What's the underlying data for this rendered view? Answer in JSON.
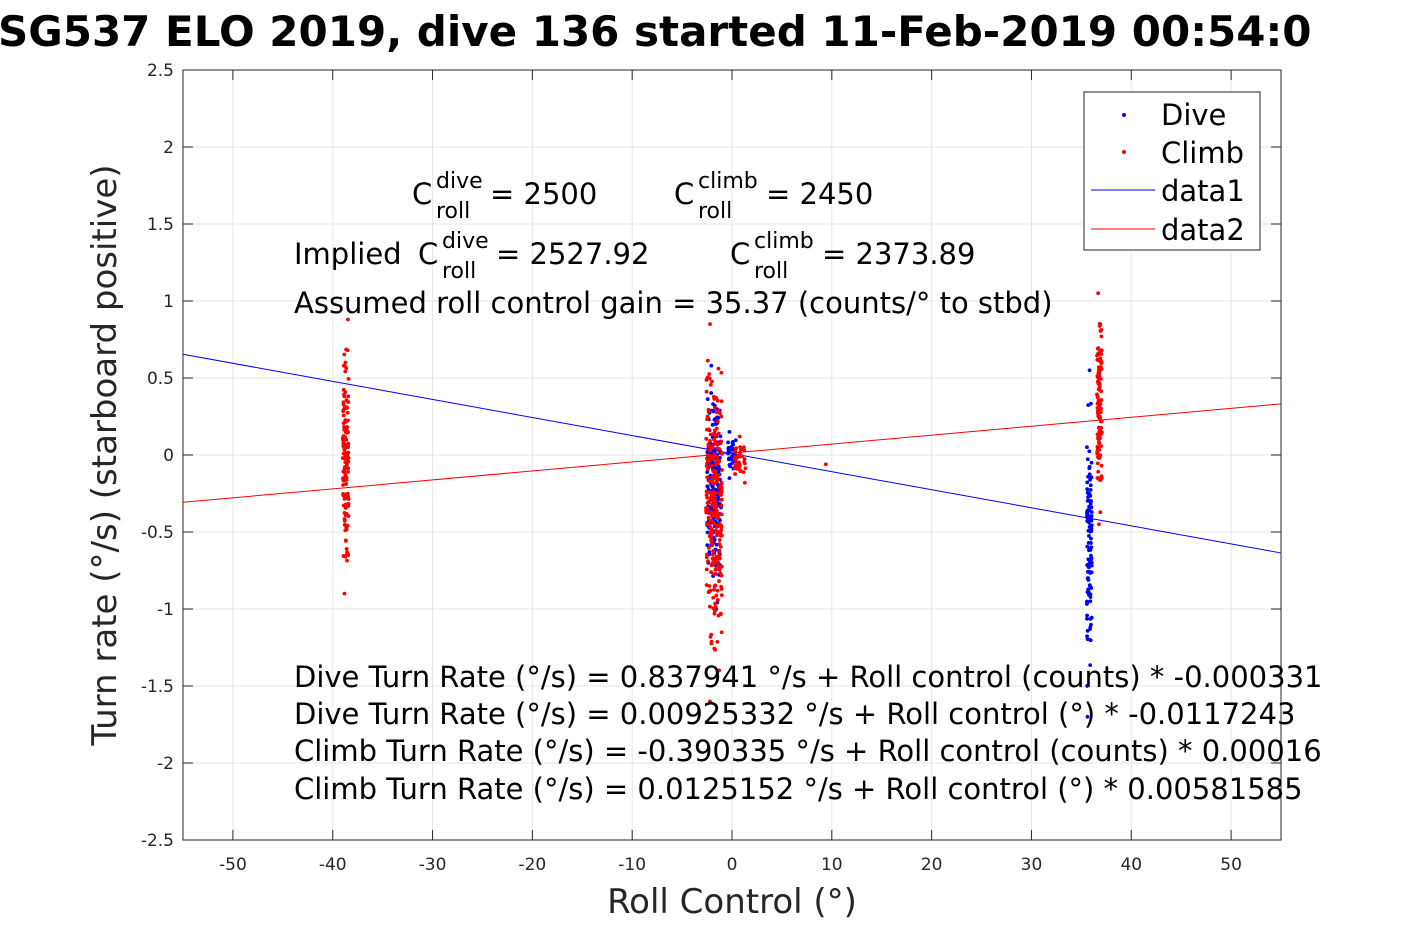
{
  "chart_data": {
    "type": "scatter",
    "title": "SG537 ELO 2019, dive 136 started 11-Feb-2019 00:54:0",
    "xlabel": "Roll Control (°)",
    "ylabel": "Turn rate (°/s) (starboard positive)",
    "xlim": [
      -55,
      55
    ],
    "ylim": [
      -2.5,
      2.5
    ],
    "xticks": [
      -50,
      -40,
      -30,
      -20,
      -10,
      0,
      10,
      20,
      30,
      40,
      50
    ],
    "yticks": [
      -2.5,
      -2,
      -1.5,
      -1,
      -0.5,
      0,
      0.5,
      1,
      1.5,
      2,
      2.5
    ],
    "xtick_labels": [
      "-50",
      "-40",
      "-30",
      "-20",
      "-10",
      "0",
      "10",
      "20",
      "30",
      "40",
      "50"
    ],
    "ytick_labels": [
      "-2.5",
      "-2",
      "-1.5",
      "-1",
      "-0.5",
      "0",
      "0.5",
      "1",
      "1.5",
      "2",
      "2.5"
    ],
    "grid": true,
    "legend_position": "top-right",
    "series": [
      {
        "name": "Dive",
        "kind": "points",
        "color": "#0000ff",
        "clusters": [
          {
            "x": -1.8,
            "x_spread": 1.4,
            "y_min": -1.0,
            "y_max": 0.58,
            "count": 220
          },
          {
            "x": 0,
            "x_spread": 0.8,
            "y_min": -0.15,
            "y_max": 0.15,
            "count": 40
          },
          {
            "x": 35.8,
            "x_spread": 0.5,
            "y_min": -1.7,
            "y_max": 0.55,
            "count": 110
          }
        ]
      },
      {
        "name": "Climb",
        "kind": "points",
        "color": "#ff0000",
        "clusters": [
          {
            "x": -38.7,
            "x_spread": 0.6,
            "y_min": -0.9,
            "y_max": 0.88,
            "count": 140
          },
          {
            "x": -1.8,
            "x_spread": 1.6,
            "y_min": -1.6,
            "y_max": 0.85,
            "count": 260
          },
          {
            "x": 0.8,
            "x_spread": 1.2,
            "y_min": -0.18,
            "y_max": 0.12,
            "count": 40
          },
          {
            "x": 36.8,
            "x_spread": 0.5,
            "y_min": -0.45,
            "y_max": 1.05,
            "count": 120
          }
        ],
        "extra_points": [
          [
            9.4,
            -0.06
          ]
        ]
      },
      {
        "name": "data1",
        "kind": "line",
        "color": "#0000ff",
        "x": [
          -55,
          55
        ],
        "y": [
          0.654,
          -0.636
        ]
      },
      {
        "name": "data2",
        "kind": "line",
        "color": "#ff0000",
        "x": [
          -55,
          55
        ],
        "y": [
          -0.307,
          0.332
        ]
      }
    ],
    "annotations": {
      "c_roll_dive": {
        "base": "C",
        "sup": "dive",
        "sub": "roll",
        "value": " = 2500"
      },
      "c_roll_climb": {
        "base": "C",
        "sup": "climb",
        "sub": "roll",
        "value": " = 2450"
      },
      "implied_prefix": "Implied ",
      "implied_dive": {
        "base": "C",
        "sup": "dive",
        "sub": "roll",
        "value": " = 2527.92"
      },
      "implied_climb": {
        "base": "C",
        "sup": "climb",
        "sub": "roll",
        "value": " = 2373.89"
      },
      "gain": "Assumed roll control gain = 35.37 (counts/° to stbd)",
      "fit_lines": [
        "Dive Turn Rate (°/s) = 0.837941 °/s + Roll control (counts) * -0.000331",
        "Dive Turn Rate (°/s) = 0.00925332 °/s + Roll control (°) * -0.0117243",
        "Climb Turn Rate (°/s) = -0.390335 °/s + Roll control (counts) * 0.00016",
        "Climb Turn Rate (°/s) = 0.0125152 °/s + Roll control (°) * 0.00581585"
      ]
    }
  }
}
